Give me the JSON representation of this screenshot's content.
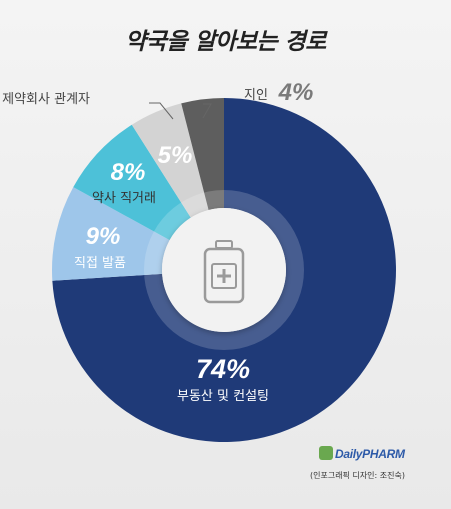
{
  "chart_data": {
    "type": "pie",
    "title": "약국을 알아보는 경로",
    "slices": [
      {
        "label": "부동산 및 컨설팅",
        "value": 74,
        "value_label": "74%",
        "color": "#1f3a78"
      },
      {
        "label": "직접 발품",
        "value": 9,
        "value_label": "9%",
        "color": "#9ec6ea"
      },
      {
        "label": "약사 직거래",
        "value": 8,
        "value_label": "8%",
        "color": "#4dc1d8"
      },
      {
        "label": "제약회사 관계자",
        "value": 5,
        "value_label": "5%",
        "color": "#d3d3d3"
      },
      {
        "label": "지인",
        "value": 4,
        "value_label": "4%",
        "color": "#5e5e5e"
      }
    ],
    "center_icon": "medicine-bottle-icon"
  },
  "footer": {
    "brand": "DailyPHARM",
    "credit": "(인포그래픽 디자인: 조진숙)"
  }
}
